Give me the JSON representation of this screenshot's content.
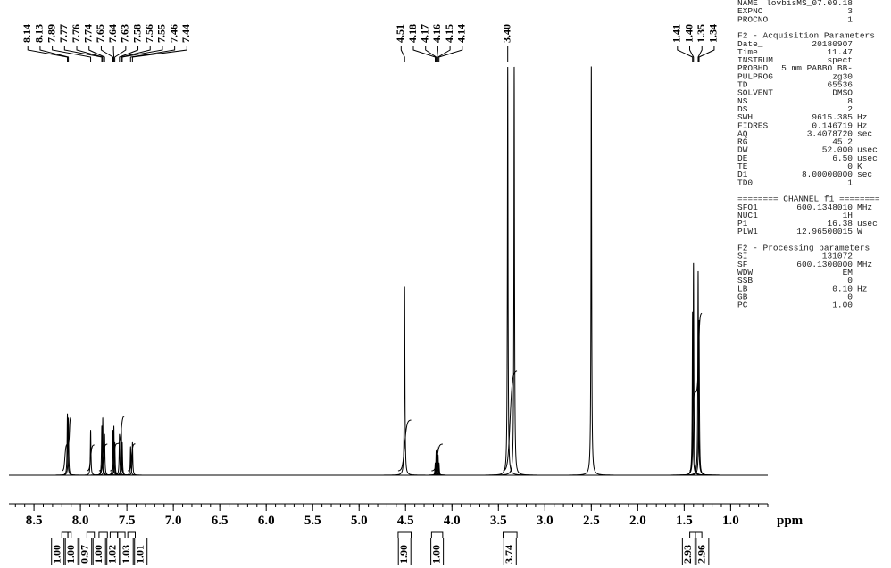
{
  "chart_data": {
    "type": "spectrum",
    "x_label": "ppm",
    "xlim": [
      8.77,
      0.6
    ],
    "ylim": [
      0,
      100
    ],
    "xticks": [
      8.5,
      {
        "value": 8,
        "label": "8.0"
      },
      7.5,
      {
        "value": 7,
        "label": "7.0"
      },
      6.5,
      {
        "value": 6,
        "label": "6.0"
      },
      5.5,
      {
        "value": 5,
        "label": "5.0"
      },
      4.5,
      {
        "value": 4,
        "label": "4.0"
      },
      3.5,
      {
        "value": 3,
        "label": "3.0"
      },
      2.5,
      {
        "value": 2,
        "label": "2.0"
      },
      1.5,
      {
        "value": 1,
        "label": "1.0"
      }
    ],
    "x": [
      8.14,
      8.13,
      7.89,
      7.77,
      7.76,
      7.74,
      7.65,
      7.64,
      7.63,
      7.58,
      7.56,
      7.55,
      7.46,
      7.44,
      4.51,
      4.18,
      4.17,
      4.16,
      4.15,
      4.14,
      3.4,
      3.33,
      2.5,
      1.41,
      1.4,
      1.35,
      1.34
    ],
    "values": [
      15,
      14,
      11,
      12,
      14,
      10,
      11,
      12,
      8,
      10,
      12,
      8,
      7,
      8,
      46,
      3,
      6,
      7,
      5,
      3,
      100,
      100,
      100,
      40,
      52,
      50,
      38
    ],
    "color": "#000000",
    "peak_labels": [
      8.14,
      8.13,
      7.89,
      7.77,
      7.76,
      7.74,
      7.65,
      7.64,
      7.63,
      7.58,
      7.56,
      7.55,
      7.46,
      7.44,
      4.51,
      4.18,
      4.17,
      4.16,
      4.15,
      4.14,
      {
        "value": 3.4,
        "label": "3.40"
      },
      1.41,
      {
        "value": 1.4,
        "label": "1.40"
      },
      1.35,
      1.34
    ],
    "integrals": {
      "values": [
        1,
        1,
        0.97,
        1,
        1.02,
        1.03,
        1.01,
        1.9,
        1,
        3.74,
        2.93,
        2.96
      ],
      "value_labels": [
        "1.00",
        "1.00",
        "0.97",
        "1.00",
        "1.02",
        "1.03",
        "1.01",
        "1.90",
        "1.00",
        "3.74",
        "2.93",
        "2.96"
      ],
      "ranges": [
        [
          8.2,
          8.135
        ],
        [
          8.135,
          8.1
        ],
        [
          7.93,
          7.85
        ],
        [
          7.8,
          7.71
        ],
        [
          7.68,
          7.6
        ],
        [
          7.6,
          7.52
        ],
        [
          7.49,
          7.41
        ],
        [
          4.58,
          4.44
        ],
        [
          4.22,
          4.1
        ],
        [
          3.45,
          3.3
        ],
        [
          1.44,
          1.38
        ],
        [
          1.38,
          1.31
        ]
      ]
    }
  },
  "parameters": [
    {
      "rows": [
        [
          "NAME",
          "lovbisMS_07.09.18"
        ],
        [
          "EXPNO",
          "3"
        ],
        [
          "PROCNO",
          "1"
        ]
      ]
    },
    {
      "title": "F2 - Acquisition Parameters",
      "rows": [
        [
          "Date_",
          "20180907"
        ],
        [
          "Time",
          "11.47"
        ],
        [
          "INSTRUM",
          "spect"
        ],
        [
          "PROBHD",
          "5 mm PABBO BB-"
        ],
        [
          "PULPROG",
          "zg30"
        ],
        [
          "TD",
          "65536"
        ],
        [
          "SOLVENT",
          "DMSO"
        ],
        [
          "NS",
          "8"
        ],
        [
          "DS",
          "2"
        ],
        [
          "SWH",
          "9615.385",
          "Hz"
        ],
        [
          "FIDRES",
          "0.146719",
          "Hz"
        ],
        [
          "AQ",
          "3.4078720",
          "sec"
        ],
        [
          "RG",
          "45.2"
        ],
        [
          "DW",
          "52.000",
          "usec"
        ],
        [
          "DE",
          "6.50",
          "usec"
        ],
        [
          "TE",
          "0",
          "K"
        ],
        [
          "D1",
          "8.00000000",
          "sec"
        ],
        [
          "TD0",
          "1"
        ]
      ]
    },
    {
      "title": "======== CHANNEL f1 ========",
      "rows": [
        [
          "SFO1",
          "600.1348010",
          "MHz"
        ],
        [
          "NUC1",
          "1H"
        ],
        [
          "P1",
          "16.38",
          "usec"
        ],
        [
          "PLW1",
          "12.96500015",
          "W"
        ]
      ]
    },
    {
      "title": "F2 - Processing parameters",
      "rows": [
        [
          "SI",
          "131072"
        ],
        [
          "SF",
          "600.1300000",
          "MHz"
        ],
        [
          "WDW",
          "EM"
        ],
        [
          "SSB",
          "0"
        ],
        [
          "LB",
          "0.10",
          "Hz"
        ],
        [
          "GB",
          "0"
        ],
        [
          "PC",
          "1.00"
        ]
      ]
    }
  ]
}
